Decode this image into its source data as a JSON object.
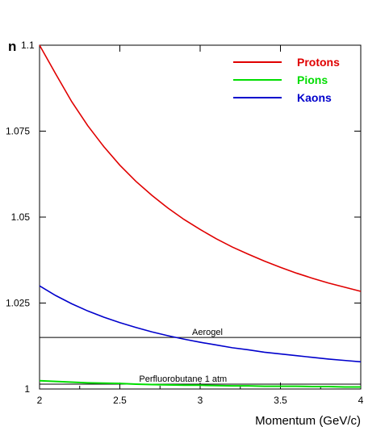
{
  "chart_data": {
    "type": "line",
    "title": "",
    "xlabel": "Momentum (GeV/c)",
    "ylabel": "n",
    "xlim": [
      2,
      4
    ],
    "ylim": [
      1,
      1.1
    ],
    "x_ticks": [
      2,
      2.5,
      3,
      3.5,
      4
    ],
    "x_tick_labels": [
      "2",
      "2.5",
      "3",
      "3.5",
      "4"
    ],
    "y_ticks": [
      1,
      1.025,
      1.05,
      1.075,
      1.1
    ],
    "y_tick_labels": [
      "1",
      "1.025",
      "1.05",
      "1.075",
      "1.1"
    ],
    "grid": false,
    "legend_position": "top-right",
    "x": [
      2.0,
      2.1,
      2.2,
      2.3,
      2.4,
      2.5,
      2.6,
      2.7,
      2.8,
      2.9,
      3.0,
      3.1,
      3.2,
      3.3,
      3.4,
      3.5,
      3.6,
      3.7,
      3.8,
      3.9,
      4.0
    ],
    "series": [
      {
        "name": "Protons",
        "color": "#e00000",
        "values": [
          1.1012,
          1.0917,
          1.0836,
          1.0766,
          1.0705,
          1.0651,
          1.0604,
          1.0563,
          1.0526,
          1.0493,
          1.0464,
          1.0437,
          1.0413,
          1.0392,
          1.0372,
          1.0354,
          1.0337,
          1.0322,
          1.0308,
          1.0296,
          1.0284
        ]
      },
      {
        "name": "Pions",
        "color": "#00dd00",
        "values": [
          1.0024,
          1.0022,
          1.002,
          1.0018,
          1.0017,
          1.0016,
          1.0014,
          1.0013,
          1.0012,
          1.0011,
          1.0011,
          1.001,
          1.0009,
          1.0009,
          1.0008,
          1.0008,
          1.0008,
          1.0007,
          1.0007,
          1.0006,
          1.0006
        ]
      },
      {
        "name": "Kaons",
        "color": "#0000cc",
        "values": [
          1.03,
          1.0272,
          1.0248,
          1.0227,
          1.0209,
          1.0193,
          1.0179,
          1.0166,
          1.0155,
          1.0145,
          1.0136,
          1.0128,
          1.012,
          1.0114,
          1.0107,
          1.0102,
          1.0097,
          1.0092,
          1.0087,
          1.0083,
          1.0079
        ]
      }
    ],
    "reference_lines": [
      {
        "label": "Aerogel",
        "y": 1.015,
        "label_x": 2.95
      },
      {
        "label": "Perfluorobutane  1 atm",
        "y": 1.0014,
        "label_x": 2.62
      }
    ]
  }
}
